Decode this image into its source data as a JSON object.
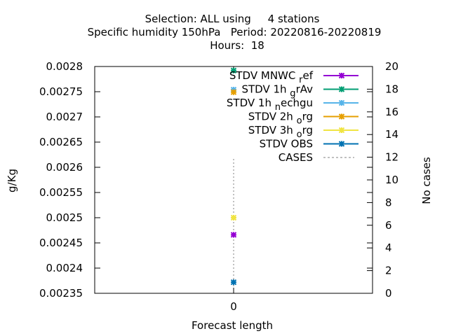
{
  "chart_data": {
    "type": "scatter",
    "title_lines": [
      "Selection: ALL using     4 stations",
      "Specific humidity 150hPa   Period: 20220816-20220819",
      "Hours:  18"
    ],
    "xlabel": "Forecast length",
    "ylabel": "g/Kg",
    "y2label": "No cases",
    "x_ticks": [
      0
    ],
    "xlim": [
      -1,
      1
    ],
    "ylim": [
      0.00235,
      0.0028
    ],
    "y_ticks": [
      "0.00235",
      "0.0024",
      "0.00245",
      "0.0025",
      "0.00255",
      "0.0026",
      "0.00265",
      "0.0027",
      "0.00275",
      "0.0028"
    ],
    "y2lim": [
      0,
      20
    ],
    "y2_ticks": [
      0,
      2,
      4,
      6,
      8,
      10,
      12,
      14,
      16,
      18,
      20
    ],
    "grid": false,
    "legend_position": "top-right",
    "series": [
      {
        "name": "STDV MNWC",
        "sub": "r",
        "rest": "ef",
        "color": "#9400d3",
        "x": [
          0
        ],
        "y": [
          0.002466
        ]
      },
      {
        "name": "STDV 1h",
        "sub": "g",
        "rest": "rAv",
        "color": "#009e73",
        "x": [
          0
        ],
        "y": [
          0.002792
        ]
      },
      {
        "name": "STDV 1h",
        "sub": "n",
        "rest": "echgu",
        "color": "#56b4e9",
        "x": [
          0
        ],
        "y": [
          0.002754
        ]
      },
      {
        "name": "STDV 2h",
        "sub": "o",
        "rest": "rg",
        "color": "#e69f00",
        "x": [
          0
        ],
        "y": [
          0.002749
        ]
      },
      {
        "name": "STDV 3h",
        "sub": "o",
        "rest": "rg",
        "color": "#f0e442",
        "x": [
          0
        ],
        "y": [
          0.0025
        ]
      },
      {
        "name": "STDV OBS",
        "sub": "",
        "rest": "",
        "color": "#0072b2",
        "x": [
          0
        ],
        "y": [
          0.002372
        ]
      }
    ],
    "cases": {
      "name": "CASES",
      "color": "#808080",
      "x": [
        0
      ],
      "y": [
        12
      ]
    }
  }
}
